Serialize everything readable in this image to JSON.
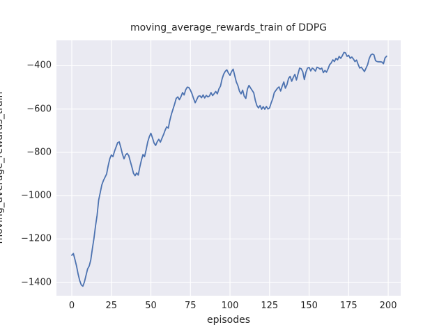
{
  "title": "moving_average_rewards_train of DDPG",
  "xlabel": "episodes",
  "ylabel": "moving_average_rewards_train",
  "colors": {
    "figure_background": "#ffffff",
    "plot_background": "#eaeaf2",
    "gridline": "#ffffff",
    "line": "#4c72b0",
    "text": "#262626"
  },
  "chart_data": {
    "type": "line",
    "title": "moving_average_rewards_train of DDPG",
    "xlabel": "episodes",
    "ylabel": "moving_average_rewards_train",
    "legend": null,
    "grid": true,
    "xticks": [
      0,
      25,
      50,
      75,
      100,
      125,
      150,
      175,
      200
    ],
    "yticks": [
      -400,
      -600,
      -800,
      -1000,
      -1200,
      -1400
    ],
    "xlim": [
      -9.7,
      207.9
    ],
    "ylim": [
      -1462,
      -283
    ],
    "x": [
      0,
      1,
      2,
      3,
      4,
      5,
      6,
      7,
      8,
      9,
      10,
      11,
      12,
      13,
      14,
      15,
      16,
      17,
      18,
      19,
      20,
      21,
      22,
      23,
      24,
      25,
      26,
      27,
      28,
      29,
      30,
      31,
      32,
      33,
      34,
      35,
      36,
      37,
      38,
      39,
      40,
      41,
      42,
      43,
      44,
      45,
      46,
      47,
      48,
      49,
      50,
      51,
      52,
      53,
      54,
      55,
      56,
      57,
      58,
      59,
      60,
      61,
      62,
      63,
      64,
      65,
      66,
      67,
      68,
      69,
      70,
      71,
      72,
      73,
      74,
      75,
      76,
      77,
      78,
      79,
      80,
      81,
      82,
      83,
      84,
      85,
      86,
      87,
      88,
      89,
      90,
      91,
      92,
      93,
      94,
      95,
      96,
      97,
      98,
      99,
      100,
      101,
      102,
      103,
      104,
      105,
      106,
      107,
      108,
      109,
      110,
      111,
      112,
      113,
      114,
      115,
      116,
      117,
      118,
      119,
      120,
      121,
      122,
      123,
      124,
      125,
      126,
      127,
      128,
      129,
      130,
      131,
      132,
      133,
      134,
      135,
      136,
      137,
      138,
      139,
      140,
      141,
      142,
      143,
      144,
      145,
      146,
      147,
      148,
      149,
      150,
      151,
      152,
      153,
      154,
      155,
      156,
      157,
      158,
      159,
      160,
      161,
      162,
      163,
      164,
      165,
      166,
      167,
      168,
      169,
      170,
      171,
      172,
      173,
      174,
      175,
      176,
      177,
      178,
      179,
      180,
      181,
      182,
      183,
      184,
      185,
      186,
      187,
      188,
      189,
      190,
      191,
      192,
      193,
      194,
      195,
      196,
      197,
      198,
      199
    ],
    "y": [
      -1275,
      -1267,
      -1295,
      -1325,
      -1362,
      -1392,
      -1412,
      -1418,
      -1398,
      -1368,
      -1338,
      -1325,
      -1297,
      -1245,
      -1198,
      -1140,
      -1090,
      -1020,
      -985,
      -950,
      -930,
      -915,
      -900,
      -862,
      -830,
      -812,
      -820,
      -795,
      -775,
      -755,
      -752,
      -778,
      -808,
      -830,
      -812,
      -805,
      -815,
      -842,
      -868,
      -897,
      -908,
      -895,
      -905,
      -868,
      -836,
      -810,
      -820,
      -788,
      -752,
      -728,
      -712,
      -733,
      -757,
      -768,
      -751,
      -740,
      -753,
      -735,
      -718,
      -698,
      -682,
      -688,
      -652,
      -623,
      -600,
      -577,
      -551,
      -544,
      -557,
      -543,
      -524,
      -535,
      -511,
      -499,
      -501,
      -513,
      -530,
      -552,
      -571,
      -556,
      -541,
      -539,
      -548,
      -535,
      -549,
      -537,
      -544,
      -540,
      -524,
      -538,
      -529,
      -519,
      -530,
      -507,
      -494,
      -461,
      -439,
      -426,
      -419,
      -434,
      -444,
      -427,
      -416,
      -446,
      -475,
      -492,
      -518,
      -530,
      -513,
      -541,
      -551,
      -508,
      -491,
      -503,
      -514,
      -525,
      -560,
      -584,
      -595,
      -584,
      -601,
      -589,
      -601,
      -588,
      -600,
      -595,
      -572,
      -553,
      -524,
      -514,
      -504,
      -498,
      -517,
      -494,
      -475,
      -504,
      -488,
      -459,
      -449,
      -472,
      -454,
      -440,
      -466,
      -438,
      -411,
      -414,
      -428,
      -464,
      -430,
      -411,
      -408,
      -424,
      -411,
      -416,
      -425,
      -407,
      -410,
      -416,
      -411,
      -432,
      -422,
      -430,
      -414,
      -395,
      -387,
      -373,
      -381,
      -366,
      -373,
      -357,
      -366,
      -354,
      -339,
      -341,
      -357,
      -352,
      -366,
      -360,
      -369,
      -381,
      -374,
      -394,
      -411,
      -407,
      -417,
      -427,
      -411,
      -395,
      -367,
      -351,
      -346,
      -350,
      -377,
      -381,
      -382,
      -382,
      -383,
      -391,
      -364,
      -356
    ]
  }
}
